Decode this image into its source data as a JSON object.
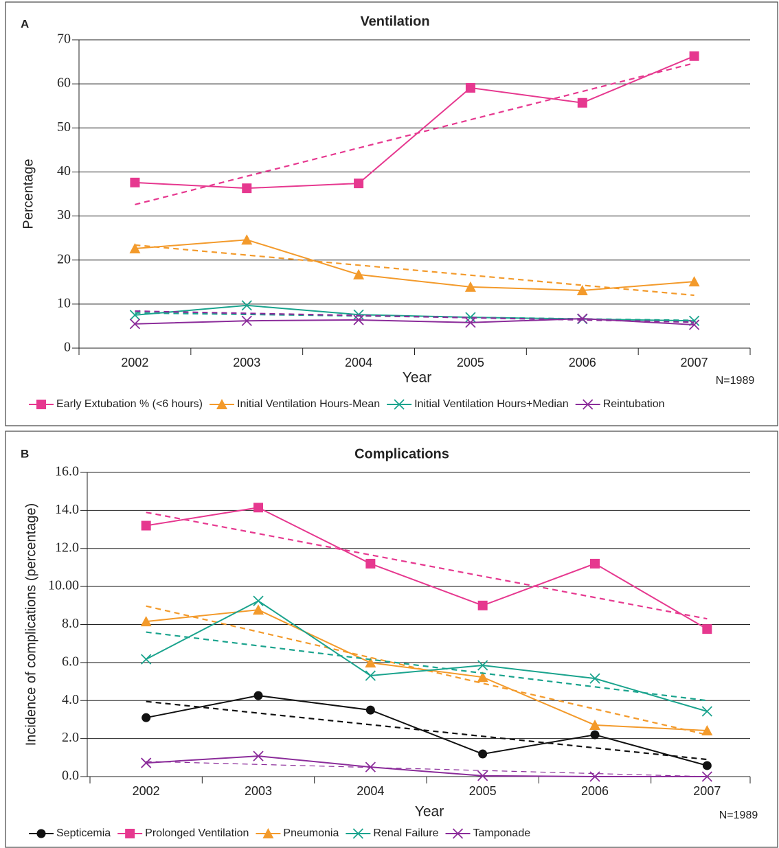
{
  "chart_data": [
    {
      "type": "line",
      "panel": "A",
      "title": "Ventilation",
      "xlabel": "Year",
      "ylabel": "Percentage",
      "note": "N=1989",
      "categories": [
        "2002",
        "2003",
        "2004",
        "2005",
        "2006",
        "2007"
      ],
      "ylim": [
        0,
        70
      ],
      "yticks": [
        0,
        10,
        20,
        30,
        40,
        50,
        60,
        70
      ],
      "grid": true,
      "series": [
        {
          "name": "Early Extubation % (<6 hours)",
          "color": "#e6388f",
          "marker": "square",
          "values": [
            37.6,
            36.3,
            37.4,
            59.1,
            55.7,
            66.3
          ],
          "trend": [
            32.6,
            64.7
          ]
        },
        {
          "name": "Initial Ventilation Hours-Mean",
          "color": "#f39a2b",
          "marker": "triangle",
          "values": [
            22.6,
            24.6,
            16.7,
            13.9,
            13.1,
            15.1
          ],
          "trend": [
            23.4,
            12.0
          ]
        },
        {
          "name": "Initial Ventilation Hours+Median",
          "color": "#1aa38d",
          "marker": "x",
          "values": [
            7.5,
            9.7,
            7.6,
            7.0,
            6.6,
            6.2
          ],
          "trend": [
            8.0,
            6.3
          ]
        },
        {
          "name": "Reintubation",
          "color": "#8b2c9a",
          "marker": "x",
          "values": [
            5.5,
            6.2,
            6.4,
            5.8,
            6.7,
            5.3
          ],
          "trend": [
            8.4,
            5.9
          ]
        }
      ]
    },
    {
      "type": "line",
      "panel": "B",
      "title": "Complications",
      "xlabel": "Year",
      "ylabel": "Incidence of complications (percentage)",
      "note": "N=1989",
      "categories": [
        "2002",
        "2003",
        "2004",
        "2005",
        "2006",
        "2007"
      ],
      "ylim": [
        0,
        16
      ],
      "yticks": [
        {
          "value": 0,
          "label": "0.0"
        },
        {
          "value": 2,
          "label": "2.0"
        },
        {
          "value": 4,
          "label": "4.0"
        },
        {
          "value": 6,
          "label": "6.0"
        },
        {
          "value": 8,
          "label": "8.0"
        },
        {
          "value": 10,
          "label": "10.00"
        },
        {
          "value": 12,
          "label": "12.0"
        },
        {
          "value": 14,
          "label": "14.0"
        },
        {
          "value": 16,
          "label": "16.0"
        }
      ],
      "grid": true,
      "series": [
        {
          "name": "Septicemia",
          "color": "#111111",
          "marker": "circle",
          "values": [
            3.1,
            4.26,
            3.5,
            1.19,
            2.2,
            0.58
          ],
          "trend": [
            3.95,
            0.9
          ]
        },
        {
          "name": "Prolonged Ventilation",
          "color": "#e6388f",
          "marker": "square",
          "values": [
            13.2,
            14.15,
            11.2,
            9.0,
            11.2,
            7.76
          ],
          "trend": [
            13.9,
            8.3
          ]
        },
        {
          "name": "Pneumonia",
          "color": "#f39a2b",
          "marker": "triangle",
          "values": [
            8.16,
            8.77,
            5.99,
            5.23,
            2.71,
            2.42
          ],
          "trend": [
            8.97,
            2.2
          ]
        },
        {
          "name": "Renal Failure",
          "color": "#1aa38d",
          "marker": "x",
          "values": [
            6.17,
            9.24,
            5.31,
            5.85,
            5.16,
            3.43
          ],
          "trend": [
            7.6,
            4.0
          ]
        },
        {
          "name": "Tamponade",
          "color": "#8b2c9a",
          "marker": "x",
          "values": [
            0.72,
            1.08,
            0.5,
            0.04,
            0,
            0
          ],
          "trend": [
            0.8,
            0
          ]
        }
      ]
    }
  ]
}
